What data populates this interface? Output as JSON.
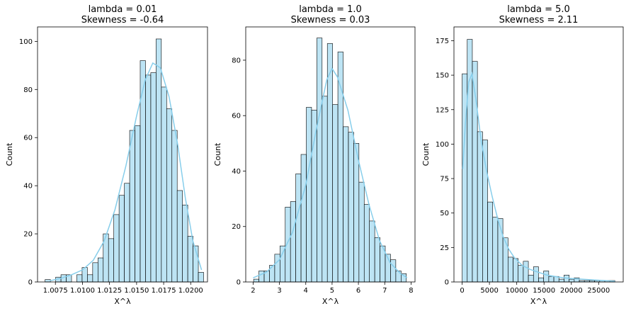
{
  "style": {
    "bar_color": "#87CEEB",
    "kde_color": "#87CEEB"
  },
  "chart_data": [
    {
      "type": "bar",
      "title_line1": "lambda = 0.01",
      "title_line2": "Skewness = -0.64",
      "xlabel": "X^λ",
      "ylabel": "Count",
      "xlim": [
        1.00585,
        1.02155
      ],
      "ylim": [
        0,
        106
      ],
      "xticks": [
        1.0075,
        1.01,
        1.0125,
        1.015,
        1.0175,
        1.02
      ],
      "xtick_labels": [
        "1.0075",
        "1.0100",
        "1.0125",
        "1.0150",
        "1.0175",
        "1.0200"
      ],
      "yticks": [
        0,
        20,
        40,
        60,
        80,
        100
      ],
      "bins": {
        "start": 1.00655,
        "width": 0.000488
      },
      "counts": [
        1,
        0,
        2,
        3,
        3,
        0,
        3,
        6,
        3,
        8,
        10,
        20,
        18,
        28,
        36,
        41,
        63,
        65,
        92,
        86,
        87,
        101,
        81,
        72,
        63,
        38,
        32,
        19,
        15,
        4
      ],
      "kde": [
        [
          1.007,
          0.5
        ],
        [
          1.008,
          1.5
        ],
        [
          1.009,
          3
        ],
        [
          1.01,
          5
        ],
        [
          1.011,
          9
        ],
        [
          1.012,
          17
        ],
        [
          1.013,
          30
        ],
        [
          1.014,
          48
        ],
        [
          1.015,
          69
        ],
        [
          1.0158,
          84
        ],
        [
          1.0165,
          91
        ],
        [
          1.0172,
          89
        ],
        [
          1.018,
          77
        ],
        [
          1.0188,
          57
        ],
        [
          1.0195,
          35
        ],
        [
          1.0202,
          17
        ],
        [
          1.021,
          5
        ]
      ]
    },
    {
      "type": "bar",
      "title_line1": "lambda = 1.0",
      "title_line2": "Skewness = 0.03",
      "xlabel": "X^λ",
      "ylabel": "Count",
      "xlim": [
        1.72,
        8.15
      ],
      "ylim": [
        0,
        92
      ],
      "xticks": [
        2,
        3,
        4,
        5,
        6,
        7,
        8
      ],
      "xtick_labels": [
        "2",
        "3",
        "4",
        "5",
        "6",
        "7",
        "8"
      ],
      "yticks": [
        0,
        20,
        40,
        60,
        80
      ],
      "bins": {
        "start": 2.02,
        "width": 0.2
      },
      "counts": [
        1,
        4,
        4,
        6,
        10,
        13,
        27,
        29,
        39,
        46,
        63,
        62,
        88,
        67,
        86,
        64,
        83,
        56,
        54,
        50,
        36,
        28,
        22,
        16,
        13,
        10,
        8,
        4,
        3
      ],
      "kde": [
        [
          2.0,
          1.5
        ],
        [
          2.5,
          3.5
        ],
        [
          3.0,
          8
        ],
        [
          3.5,
          18
        ],
        [
          4.0,
          35
        ],
        [
          4.4,
          55
        ],
        [
          4.8,
          73
        ],
        [
          5.0,
          77
        ],
        [
          5.2,
          74
        ],
        [
          5.6,
          62
        ],
        [
          6.0,
          44
        ],
        [
          6.4,
          28
        ],
        [
          6.8,
          15
        ],
        [
          7.2,
          7
        ],
        [
          7.6,
          3
        ],
        [
          7.85,
          1.5
        ]
      ]
    },
    {
      "type": "bar",
      "title_line1": "lambda = 5.0",
      "title_line2": "Skewness = 2.11",
      "xlabel": "X^λ",
      "ylabel": "Count",
      "xlim": [
        -1500,
        29500
      ],
      "ylim": [
        0,
        185
      ],
      "xticks": [
        0,
        5000,
        10000,
        15000,
        20000,
        25000
      ],
      "xtick_labels": [
        "0",
        "5000",
        "10000",
        "15000",
        "20000",
        "25000"
      ],
      "yticks": [
        0,
        25,
        50,
        75,
        100,
        125,
        150,
        175
      ],
      "bins": {
        "start": 0,
        "width": 933
      },
      "counts": [
        151,
        176,
        160,
        109,
        103,
        58,
        47,
        46,
        32,
        18,
        17,
        12,
        15,
        5,
        11,
        3,
        8,
        4,
        4,
        2,
        5,
        2,
        3,
        1,
        1,
        1,
        1,
        1,
        1,
        1
      ],
      "kde": [
        [
          100,
          82
        ],
        [
          600,
          115
        ],
        [
          1200,
          145
        ],
        [
          1800,
          151
        ],
        [
          2500,
          133
        ],
        [
          3500,
          102
        ],
        [
          4500,
          80
        ],
        [
          5500,
          62
        ],
        [
          6500,
          46
        ],
        [
          7500,
          33
        ],
        [
          8500,
          24
        ],
        [
          9500,
          18
        ],
        [
          11000,
          12
        ],
        [
          12500,
          9
        ],
        [
          14000,
          7
        ],
        [
          15500,
          5
        ],
        [
          17000,
          4
        ],
        [
          18500,
          3
        ],
        [
          20000,
          2.5
        ],
        [
          22000,
          2
        ],
        [
          24000,
          1.5
        ],
        [
          26000,
          1
        ],
        [
          28000,
          0.5
        ]
      ]
    }
  ]
}
